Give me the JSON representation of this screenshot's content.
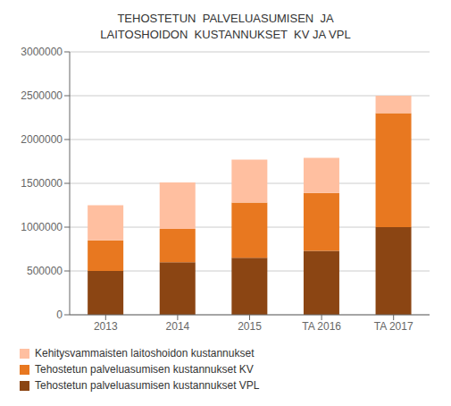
{
  "chart_data": {
    "type": "bar",
    "title": "TEHOSTETUN  PALVELUASUMISEN  JA\nLAITOSHOIDON  KUSTANNUKSET  KV JA VPL",
    "categories": [
      "2013",
      "2014",
      "2015",
      "TA 2016",
      "TA 2017"
    ],
    "series": [
      {
        "name": "Tehostetun palveluasumisen kustannukset VPL",
        "color": "#8B4513",
        "values": [
          500000,
          600000,
          650000,
          730000,
          1000000
        ]
      },
      {
        "name": "Tehostetun palveluasumisen kustannukset KV",
        "color": "#E87820",
        "values": [
          350000,
          380000,
          630000,
          660000,
          1300000
        ]
      },
      {
        "name": "Kehitysvammaisten laitoshoidon kustannukset",
        "color": "#FFBFA0",
        "values": [
          400000,
          530000,
          490000,
          400000,
          200000
        ]
      }
    ],
    "stacked": true,
    "ylim": [
      0,
      3000000
    ],
    "yticks": [
      0,
      500000,
      1000000,
      1500000,
      2000000,
      2500000,
      3000000
    ],
    "grid": true,
    "legend": "lower left"
  }
}
